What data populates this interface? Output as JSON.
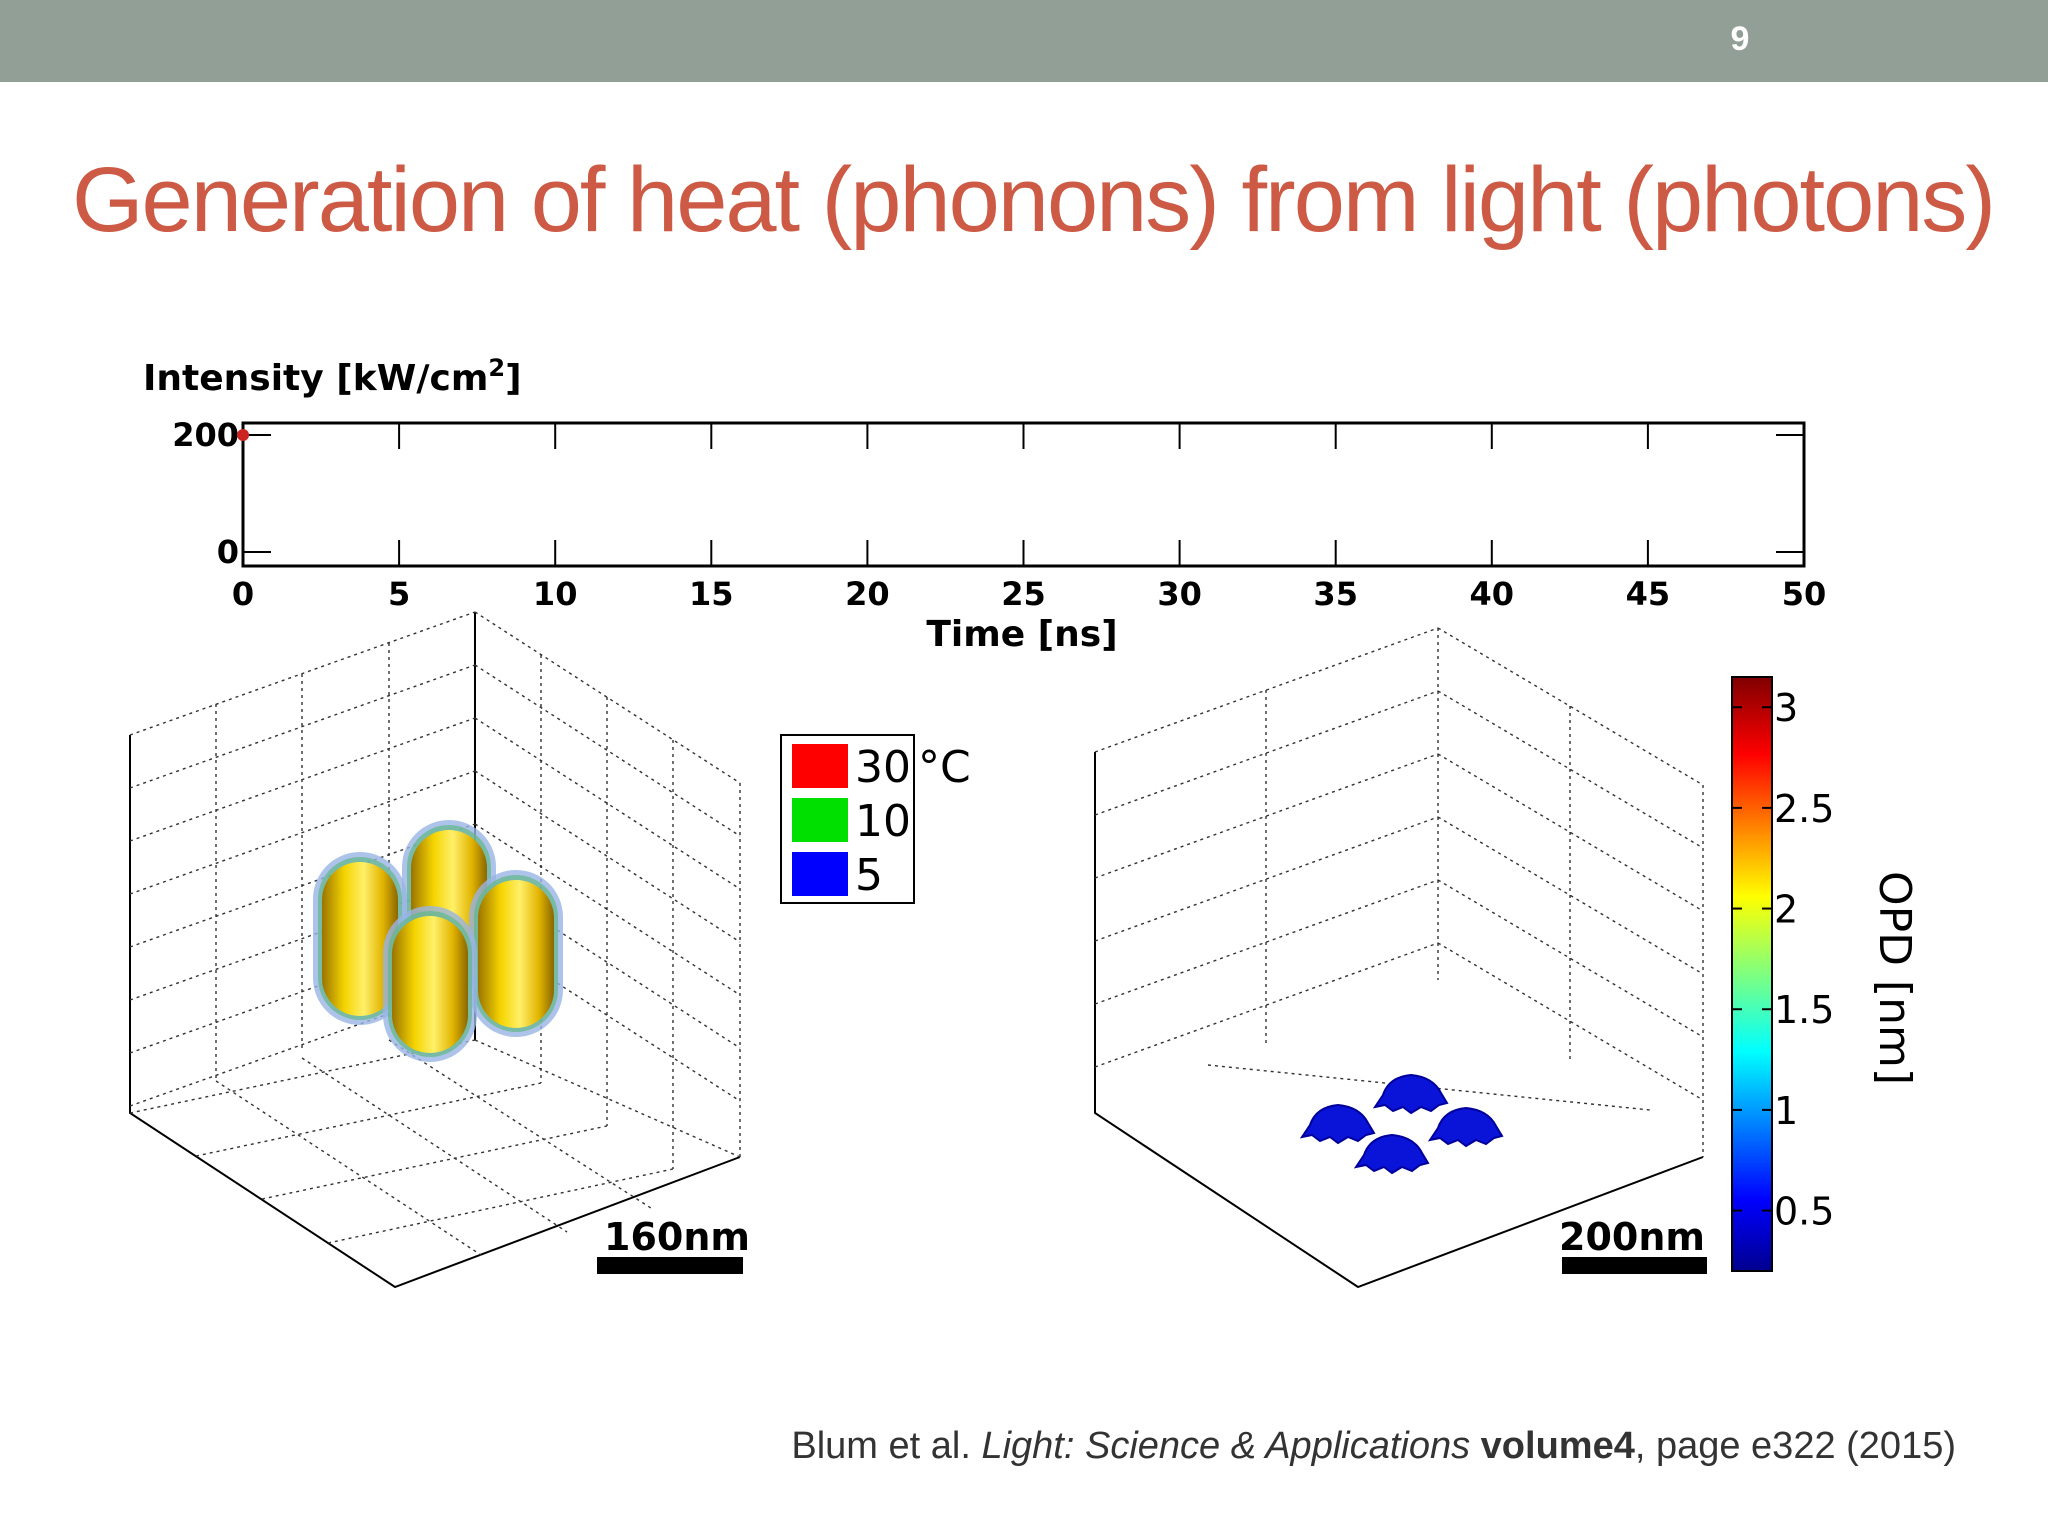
{
  "slide": {
    "number": "9",
    "title": "Generation of heat (phonons) from light (photons)",
    "citation": {
      "authors": "Blum et al.",
      "journal": "Light: Science & Applications",
      "volume": "volume4",
      "rest": ", page e322 (2015)"
    }
  },
  "colors": {
    "topbar": "#929f96",
    "title": "#cc5a45",
    "gold": "#e4b800"
  },
  "chart_data": [
    {
      "type": "line",
      "ylabel": "Intensity [kW/cm",
      "ylabel_sup": "2",
      "ylabel_end": "]",
      "xlabel": "Time [ns]",
      "xlim": [
        0,
        50
      ],
      "ylim": [
        0,
        200
      ],
      "xticks": [
        "0",
        "5",
        "10",
        "15",
        "20",
        "25",
        "30",
        "35",
        "40",
        "45",
        "50"
      ],
      "yticks": [
        "0",
        "200"
      ],
      "series": [
        {
          "x": [
            0
          ],
          "y": [
            200
          ],
          "color": "#cc2222"
        }
      ]
    },
    {
      "type": "heatmap",
      "scale_bar": "160nm",
      "legend": [
        {
          "label": "30",
          "unit": "°C",
          "color": "#ff0000"
        },
        {
          "label": "10",
          "unit": "",
          "color": "#00e000"
        },
        {
          "label": "5",
          "unit": "",
          "color": "#0000ff"
        }
      ]
    },
    {
      "type": "heatmap",
      "scale_bar": "200nm",
      "colorbar": {
        "label": "OPD [nm]",
        "ticks": [
          "3",
          "2.5",
          "2",
          "1.5",
          "1",
          "0.5"
        ],
        "tick_values": [
          3,
          2.5,
          2,
          1.5,
          1,
          0.5
        ],
        "range": [
          0.2,
          3.15
        ]
      }
    }
  ]
}
